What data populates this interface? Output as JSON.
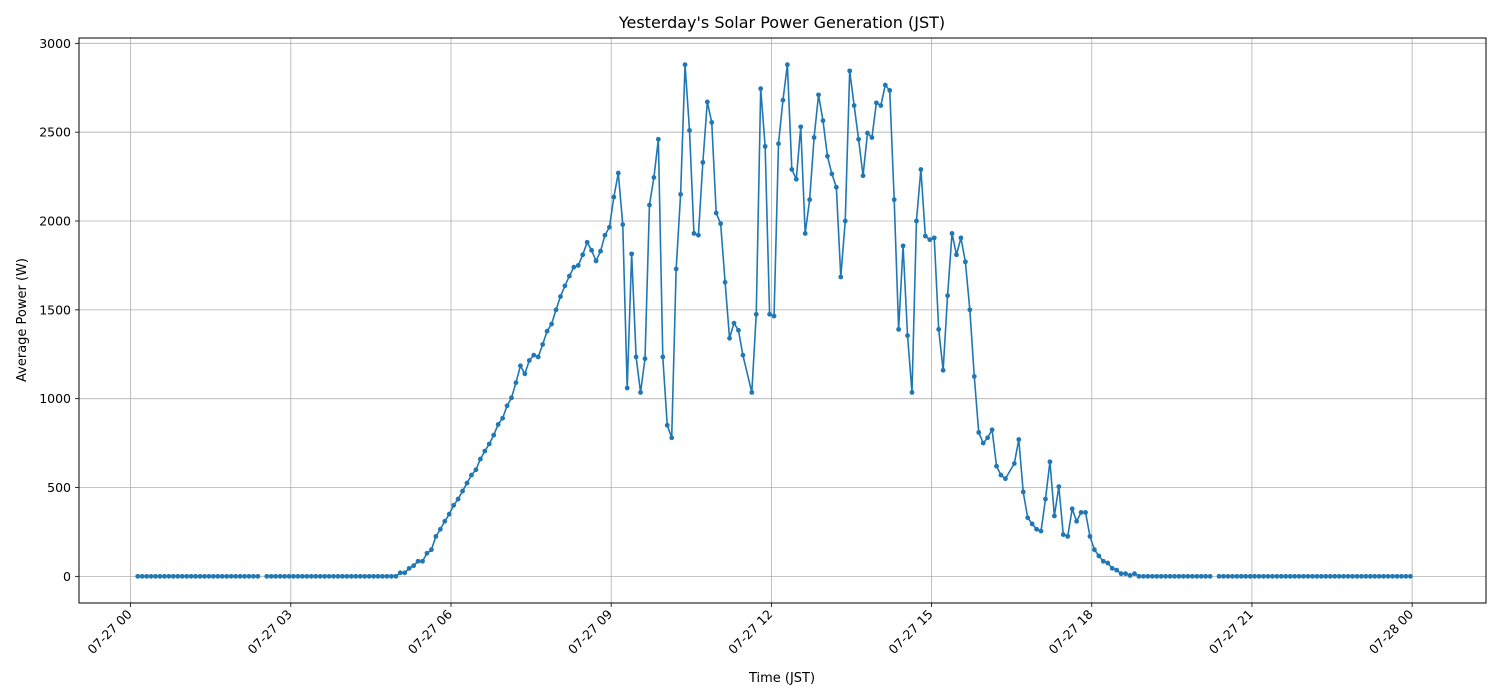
{
  "chart_data": {
    "type": "line",
    "title": "Yesterday's Solar Power Generation (JST)",
    "xlabel": "Time (JST)",
    "ylabel": "Average Power (W)",
    "x_tick_labels": [
      "07-27 00",
      "07-27 03",
      "07-27 06",
      "07-27 09",
      "07-27 12",
      "07-27 15",
      "07-27 18",
      "07-27 21",
      "07-28 00"
    ],
    "y_ticks": [
      0,
      500,
      1000,
      1500,
      2000,
      2500,
      3000
    ],
    "xlim": [
      "07-26 23:02",
      "07-28 01:23"
    ],
    "ylim": [
      -150,
      3030
    ],
    "grid": true,
    "color": "#1f77b4",
    "series": [
      {
        "segments": [
          {
            "x": [
              "00:08",
              "00:13",
              "00:18",
              "00:23",
              "00:28",
              "00:33",
              "00:38",
              "00:43",
              "00:48",
              "00:53",
              "00:58",
              "01:03",
              "01:08",
              "01:13",
              "01:18",
              "01:23",
              "01:28",
              "01:33",
              "01:38",
              "01:43",
              "01:48",
              "01:53",
              "01:58",
              "02:03",
              "02:08",
              "02:13",
              "02:18",
              "02:23"
            ],
            "y": [
              0,
              0,
              0,
              0,
              0,
              0,
              0,
              0,
              0,
              0,
              0,
              0,
              0,
              0,
              0,
              0,
              0,
              0,
              0,
              0,
              0,
              0,
              0,
              0,
              0,
              0,
              0,
              0
            ]
          },
          {
            "x": [
              "02:33",
              "02:38",
              "02:43",
              "02:48",
              "02:53",
              "02:58",
              "03:03",
              "03:08",
              "03:13",
              "03:18",
              "03:23",
              "03:28",
              "03:33",
              "03:38",
              "03:43",
              "03:48",
              "03:53",
              "03:58",
              "04:03",
              "04:08",
              "04:13",
              "04:18",
              "04:23",
              "04:28",
              "04:33",
              "04:38",
              "04:43",
              "04:48",
              "04:53",
              "04:58",
              "05:03",
              "05:08",
              "05:13",
              "05:18",
              "05:23",
              "05:28",
              "05:33",
              "05:38",
              "05:43",
              "05:48",
              "05:53",
              "05:58",
              "06:03",
              "06:08",
              "06:13",
              "06:18",
              "06:23",
              "06:28",
              "06:33",
              "06:38",
              "06:43",
              "06:48",
              "06:53",
              "06:58",
              "07:03",
              "07:08",
              "07:13",
              "07:18",
              "07:23",
              "07:28",
              "07:33",
              "07:38",
              "07:43",
              "07:48",
              "07:53",
              "07:58",
              "08:03",
              "08:08",
              "08:13",
              "08:18",
              "08:23",
              "08:28",
              "08:33",
              "08:38",
              "08:43",
              "08:48",
              "08:53",
              "08:58",
              "09:03",
              "09:08",
              "09:13",
              "09:18",
              "09:23",
              "09:28",
              "09:33",
              "09:38",
              "09:43",
              "09:48",
              "09:53",
              "09:58",
              "10:03",
              "10:08",
              "10:13",
              "10:18",
              "10:23",
              "10:28",
              "10:33",
              "10:38",
              "10:43",
              "10:48",
              "10:53",
              "10:58",
              "11:03",
              "11:08",
              "11:13",
              "11:18",
              "11:23",
              "11:28",
              "11:38",
              "11:43",
              "11:48",
              "11:53",
              "11:58",
              "12:03",
              "12:08",
              "12:13",
              "12:18",
              "12:23",
              "12:28",
              "12:33",
              "12:38",
              "12:43",
              "12:48",
              "12:53",
              "12:58",
              "13:03",
              "13:08",
              "13:13",
              "13:18",
              "13:23",
              "13:28",
              "13:33",
              "13:38",
              "13:43",
              "13:48",
              "13:53",
              "13:58",
              "14:03",
              "14:08",
              "14:13",
              "14:18",
              "14:23",
              "14:28",
              "14:33",
              "14:38",
              "14:43",
              "14:48",
              "14:53",
              "14:58",
              "15:03",
              "15:08",
              "15:13",
              "15:18",
              "15:23",
              "15:28",
              "15:33",
              "15:38",
              "15:43",
              "15:48",
              "15:53",
              "15:58",
              "16:03",
              "16:08",
              "16:13",
              "16:18",
              "16:23",
              "16:33",
              "16:38",
              "16:43",
              "16:48",
              "16:53",
              "16:58",
              "17:03",
              "17:08",
              "17:13",
              "17:18",
              "17:23",
              "17:28",
              "17:33",
              "17:38",
              "17:43",
              "17:48",
              "17:53",
              "17:58",
              "18:03",
              "18:08",
              "18:13",
              "18:18",
              "18:23",
              "18:28",
              "18:33",
              "18:38",
              "18:43",
              "18:48",
              "18:53",
              "18:58",
              "19:03",
              "19:08",
              "19:13",
              "19:18",
              "19:23",
              "19:28",
              "19:33",
              "19:38",
              "19:43",
              "19:48",
              "19:53",
              "19:58",
              "20:03",
              "20:08",
              "20:13"
            ],
            "y": [
              0,
              0,
              0,
              0,
              0,
              0,
              0,
              0,
              0,
              0,
              0,
              0,
              0,
              0,
              0,
              0,
              0,
              0,
              0,
              0,
              0,
              0,
              0,
              0,
              0,
              0,
              0,
              0,
              0,
              0,
              20,
              20,
              45,
              60,
              85,
              85,
              130,
              150,
              225,
              265,
              310,
              350,
              400,
              435,
              480,
              525,
              570,
              600,
              660,
              705,
              745,
              795,
              855,
              890,
              960,
              1005,
              1090,
              1185,
              1140,
              1215,
              1245,
              1235,
              1305,
              1380,
              1420,
              1500,
              1575,
              1635,
              1690,
              1740,
              1750,
              1810,
              1880,
              1835,
              1775,
              1830,
              1920,
              1965,
              2135,
              2270,
              1980,
              1060,
              1815,
              1235,
              1035,
              1225,
              2090,
              2245,
              2460,
              1235,
              850,
              780,
              1730,
              2150,
              2880,
              2510,
              1930,
              1920,
              2330,
              2670,
              2555,
              2045,
              1985,
              1655,
              1340,
              1425,
              1385,
              1245,
              1035,
              1475,
              2745,
              2420,
              1475,
              1465,
              2435,
              2680,
              2880,
              2290,
              2235,
              2530,
              1930,
              2120,
              2470,
              2710,
              2565,
              2365,
              2265,
              2190,
              1685,
              2000,
              2845,
              2650,
              2460,
              2255,
              2495,
              2470,
              2665,
              2650,
              2765,
              2735,
              2120,
              1390,
              1860,
              1355,
              1035,
              2000,
              2290,
              1915,
              1895,
              1905,
              1390,
              1160,
              1580,
              1930,
              1810,
              1905,
              1770,
              1500,
              1125,
              810,
              750,
              780,
              825,
              620,
              570,
              550,
              635,
              770,
              475,
              330,
              295,
              265,
              255,
              435,
              645,
              340,
              505,
              235,
              225,
              380,
              310,
              360,
              360,
              225,
              150,
              115,
              85,
              75,
              45,
              35,
              15,
              15,
              5,
              15,
              0,
              0,
              0,
              0,
              0,
              0,
              0,
              0,
              0,
              0,
              0,
              0,
              0,
              0,
              0,
              0,
              0
            ]
          },
          {
            "x": [
              "20:23",
              "20:28",
              "20:33",
              "20:38",
              "20:43",
              "20:48",
              "20:53",
              "20:58",
              "21:03",
              "21:08",
              "21:13",
              "21:18",
              "21:23",
              "21:28",
              "21:33",
              "21:38",
              "21:43",
              "21:48",
              "21:53",
              "21:58",
              "22:03",
              "22:08",
              "22:13",
              "22:18",
              "22:23",
              "22:28",
              "22:33",
              "22:38",
              "22:43",
              "22:48",
              "22:53",
              "22:58",
              "23:03",
              "23:08",
              "23:13",
              "23:18",
              "23:23",
              "23:28",
              "23:33",
              "23:38",
              "23:43",
              "23:48",
              "23:53",
              "23:58"
            ],
            "y": [
              0,
              0,
              0,
              0,
              0,
              0,
              0,
              0,
              0,
              0,
              0,
              0,
              0,
              0,
              0,
              0,
              0,
              0,
              0,
              0,
              0,
              0,
              0,
              0,
              0,
              0,
              0,
              0,
              0,
              0,
              0,
              0,
              0,
              0,
              0,
              0,
              0,
              0,
              0,
              0,
              0,
              0,
              0,
              0
            ]
          }
        ]
      }
    ]
  }
}
